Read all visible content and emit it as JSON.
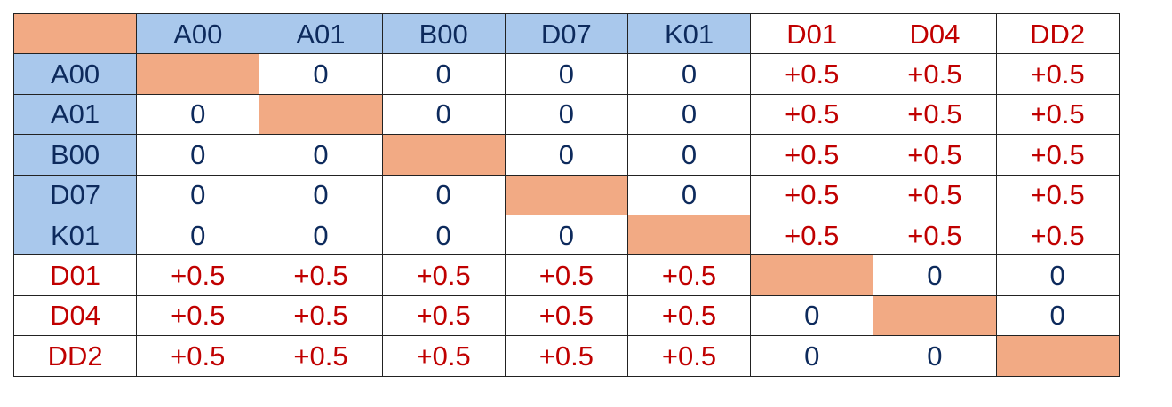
{
  "colors": {
    "header_fill": "#a9c8ec",
    "diagonal_fill": "#f2aa84",
    "group_a_text": "#0d2a5c",
    "group_b_text": "#c00000"
  },
  "table": {
    "columns": [
      {
        "label": "A00",
        "group": "a"
      },
      {
        "label": "A01",
        "group": "a"
      },
      {
        "label": "B00",
        "group": "a"
      },
      {
        "label": "D07",
        "group": "a"
      },
      {
        "label": "K01",
        "group": "a"
      },
      {
        "label": "D01",
        "group": "b"
      },
      {
        "label": "D04",
        "group": "b"
      },
      {
        "label": "DD2",
        "group": "b"
      }
    ],
    "rows": [
      {
        "label": "A00",
        "group": "a",
        "cells": [
          "",
          "0",
          "0",
          "0",
          "0",
          "+0.5",
          "+0.5",
          "+0.5"
        ]
      },
      {
        "label": "A01",
        "group": "a",
        "cells": [
          "0",
          "",
          "0",
          "0",
          "0",
          "+0.5",
          "+0.5",
          "+0.5"
        ]
      },
      {
        "label": "B00",
        "group": "a",
        "cells": [
          "0",
          "0",
          "",
          "0",
          "0",
          "+0.5",
          "+0.5",
          "+0.5"
        ]
      },
      {
        "label": "D07",
        "group": "a",
        "cells": [
          "0",
          "0",
          "0",
          "",
          "0",
          "+0.5",
          "+0.5",
          "+0.5"
        ]
      },
      {
        "label": "K01",
        "group": "a",
        "cells": [
          "0",
          "0",
          "0",
          "0",
          "",
          "+0.5",
          "+0.5",
          "+0.5"
        ]
      },
      {
        "label": "D01",
        "group": "b",
        "cells": [
          "+0.5",
          "+0.5",
          "+0.5",
          "+0.5",
          "+0.5",
          "",
          "0",
          "0"
        ]
      },
      {
        "label": "D04",
        "group": "b",
        "cells": [
          "+0.5",
          "+0.5",
          "+0.5",
          "+0.5",
          "+0.5",
          "0",
          "",
          "0"
        ]
      },
      {
        "label": "DD2",
        "group": "b",
        "cells": [
          "+0.5",
          "+0.5",
          "+0.5",
          "+0.5",
          "+0.5",
          "0",
          "0",
          ""
        ]
      }
    ]
  }
}
